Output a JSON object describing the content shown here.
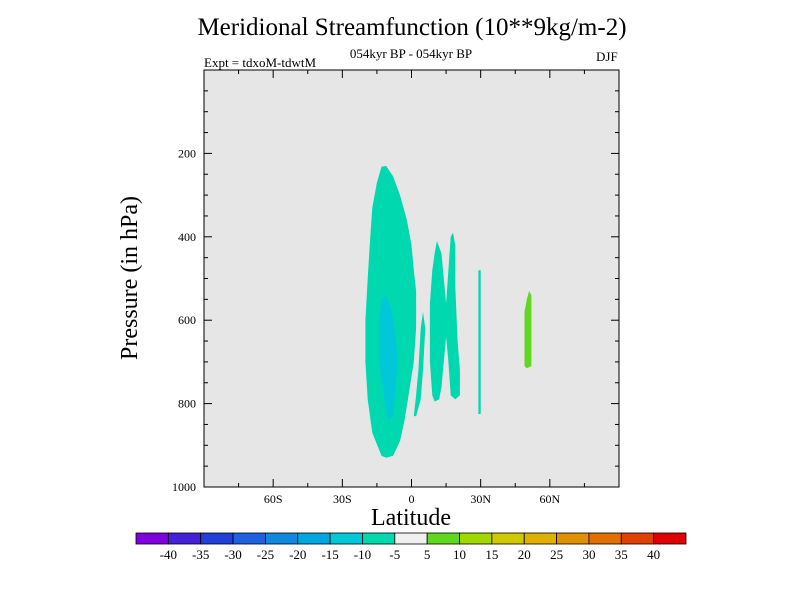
{
  "chart_data": {
    "type": "contour",
    "title": "Meridional Streamfunction (10**9kg/m-2)",
    "subtitle": "054kyr BP - 054kyr BP",
    "experiment_label": "Expt = tdxoM-tdwtM",
    "season": "DJF",
    "xlabel": "Latitude",
    "ylabel": "Pressure (in hPa)",
    "xlim": [
      -90,
      90
    ],
    "ylim": [
      1000,
      0
    ],
    "x_ticks": [
      {
        "value": -60,
        "label": "60S"
      },
      {
        "value": -30,
        "label": "30S"
      },
      {
        "value": 0,
        "label": "0"
      },
      {
        "value": 30,
        "label": "30N"
      },
      {
        "value": 60,
        "label": "60N"
      }
    ],
    "y_ticks": [
      {
        "value": 200,
        "label": "200"
      },
      {
        "value": 400,
        "label": "400"
      },
      {
        "value": 600,
        "label": "600"
      },
      {
        "value": 800,
        "label": "800"
      },
      {
        "value": 1000,
        "label": "1000"
      }
    ],
    "background_color": "#e6e6e6",
    "colorbar": {
      "labels": [
        "-40",
        "-35",
        "-30",
        "-25",
        "-20",
        "-15",
        "-10",
        "-5",
        "5",
        "10",
        "15",
        "20",
        "25",
        "30",
        "35",
        "40"
      ],
      "colors": [
        "#8000e0",
        "#4420d8",
        "#2040d8",
        "#2060e0",
        "#1088e0",
        "#00a8e0",
        "#00c8d8",
        "#00d8b0",
        "#f0f0f0",
        "#60d820",
        "#a0d800",
        "#d0c800",
        "#e0b000",
        "#e09000",
        "#e07000",
        "#e04000",
        "#e00000"
      ]
    },
    "regions": [
      {
        "name": "band-a",
        "level": "-10",
        "color": "#00d8b0",
        "points": [
          [
            -13,
            925
          ],
          [
            -17,
            870
          ],
          [
            -19,
            790
          ],
          [
            -20,
            700
          ],
          [
            -20,
            600
          ],
          [
            -19,
            500
          ],
          [
            -18,
            410
          ],
          [
            -17,
            330
          ],
          [
            -15,
            270
          ],
          [
            -13,
            232
          ],
          [
            -11,
            230
          ],
          [
            -8,
            255
          ],
          [
            -5,
            300
          ],
          [
            -2,
            360
          ],
          [
            0,
            420
          ],
          [
            1,
            480
          ],
          [
            2,
            530
          ],
          [
            2,
            620
          ],
          [
            1,
            700
          ],
          [
            -1,
            770
          ],
          [
            -3,
            840
          ],
          [
            -5,
            890
          ],
          [
            -8,
            925
          ],
          [
            -11,
            930
          ]
        ]
      },
      {
        "name": "core-a",
        "level": "-15",
        "color": "#00c8d8",
        "points": [
          [
            -10,
            840
          ],
          [
            -12,
            780
          ],
          [
            -14,
            700
          ],
          [
            -14,
            600
          ],
          [
            -13,
            550
          ],
          [
            -11,
            540
          ],
          [
            -9,
            570
          ],
          [
            -7,
            630
          ],
          [
            -6,
            700
          ],
          [
            -7,
            770
          ],
          [
            -8,
            830
          ]
        ]
      },
      {
        "name": "notch-a",
        "level": "-10",
        "color": "#00d8b0",
        "points": [
          [
            1,
            830
          ],
          [
            2,
            780
          ],
          [
            3,
            720
          ],
          [
            4,
            620
          ],
          [
            5,
            580
          ],
          [
            6,
            620
          ],
          [
            5,
            720
          ],
          [
            4,
            790
          ],
          [
            2,
            830
          ]
        ]
      },
      {
        "name": "band-b",
        "level": "-10",
        "color": "#00d8b0",
        "points": [
          [
            9,
            780
          ],
          [
            8,
            700
          ],
          [
            8,
            560
          ],
          [
            9,
            480
          ],
          [
            10,
            440
          ],
          [
            11,
            410
          ],
          [
            13,
            440
          ],
          [
            14,
            500
          ],
          [
            15,
            560
          ],
          [
            16,
            480
          ],
          [
            17,
            400
          ],
          [
            18,
            390
          ],
          [
            19,
            420
          ],
          [
            19,
            520
          ],
          [
            20,
            650
          ],
          [
            21,
            720
          ],
          [
            21,
            780
          ],
          [
            19,
            790
          ],
          [
            17,
            780
          ],
          [
            16,
            700
          ],
          [
            15,
            640
          ],
          [
            14,
            700
          ],
          [
            13,
            760
          ],
          [
            12,
            790
          ],
          [
            10,
            795
          ]
        ]
      },
      {
        "name": "sliver-c",
        "level": "-10",
        "color": "#00d8b0",
        "points": [
          [
            29,
            825
          ],
          [
            29,
            700
          ],
          [
            29,
            600
          ],
          [
            29,
            480
          ],
          [
            30,
            480
          ],
          [
            30,
            600
          ],
          [
            30,
            700
          ],
          [
            30,
            825
          ]
        ]
      },
      {
        "name": "patch-d",
        "level": "10",
        "color": "#60d820",
        "points": [
          [
            49,
            710
          ],
          [
            49,
            650
          ],
          [
            49,
            580
          ],
          [
            50,
            550
          ],
          [
            51,
            530
          ],
          [
            52,
            540
          ],
          [
            52,
            640
          ],
          [
            52,
            710
          ],
          [
            50,
            715
          ]
        ]
      }
    ]
  }
}
